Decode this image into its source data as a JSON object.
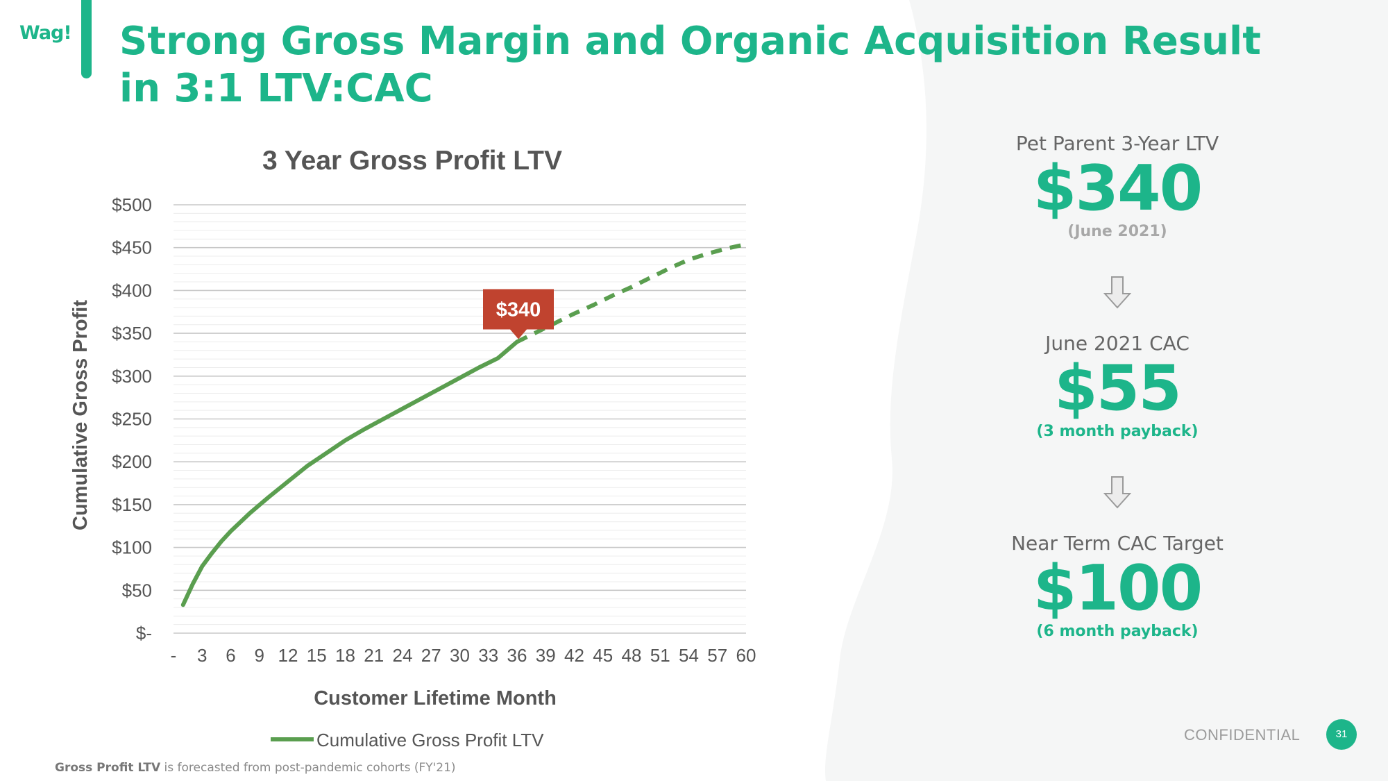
{
  "brand": {
    "logo_text": "Wag!",
    "accent_color": "#1db58a"
  },
  "slide": {
    "title": "Strong Gross Margin and Organic Acquisition Result in 3:1 LTV:CAC",
    "footnote_bold": "Gross Profit LTV",
    "footnote_rest": " is forecasted from post-pandemic cohorts (FY'21)",
    "confidential": "CONFIDENTIAL",
    "page_number": "31"
  },
  "kpis": [
    {
      "label": "Pet Parent 3-Year LTV",
      "value": "$340",
      "note": "(June 2021)"
    },
    {
      "label": "June 2021 CAC",
      "value": "$55",
      "note": "(3 month payback)"
    },
    {
      "label": "Near Term CAC Target",
      "value": "$100",
      "note": "(6 month payback)"
    }
  ],
  "icons": [
    "down-arrow-icon",
    "down-arrow-icon"
  ],
  "chart_data": {
    "type": "line",
    "title": "3 Year Gross Profit LTV",
    "xlabel": "Customer Lifetime Month",
    "ylabel": "Cumulative Gross Profit",
    "x_tick_labels": [
      "-",
      "3",
      "6",
      "9",
      "12",
      "15",
      "18",
      "21",
      "24",
      "27",
      "30",
      "33",
      "36",
      "39",
      "42",
      "45",
      "48",
      "51",
      "54",
      "57",
      "60"
    ],
    "y_tick_labels": [
      "$-",
      "$50",
      "$100",
      "$150",
      "$200",
      "$250",
      "$300",
      "$350",
      "$400",
      "$450",
      "$500"
    ],
    "xlim": [
      0,
      60
    ],
    "ylim": [
      0,
      500
    ],
    "grid": true,
    "legend_position": "bottom",
    "series": [
      {
        "name": "Cumulative Gross Profit LTV",
        "color": "#5a9e4f",
        "actual_through_month": 36,
        "x": [
          1,
          2,
          3,
          4,
          5,
          6,
          8,
          10,
          12,
          14,
          16,
          18,
          20,
          22,
          24,
          26,
          28,
          30,
          32,
          34,
          36,
          38,
          40,
          42,
          44,
          46,
          48,
          50,
          52,
          54,
          56,
          58,
          60
        ],
        "values": [
          33,
          57,
          78,
          93,
          107,
          119,
          140,
          159,
          177,
          195,
          210,
          225,
          238,
          250,
          262,
          274,
          286,
          298,
          310,
          321,
          340,
          351,
          362,
          373,
          383,
          394,
          404,
          415,
          426,
          436,
          443,
          449,
          454
        ]
      }
    ],
    "annotations": [
      {
        "text": "$340",
        "x": 36,
        "y": 340,
        "color": "#c0432f"
      }
    ]
  }
}
